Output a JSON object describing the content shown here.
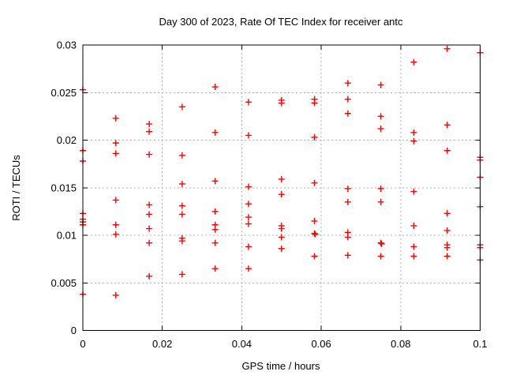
{
  "chart_data": {
    "type": "scatter",
    "title": "Day 300 of 2023, Rate Of TEC Index for receiver antc",
    "xlabel": "GPS time / hours",
    "ylabel": "ROTI / TECUs",
    "xlim": [
      0,
      0.1
    ],
    "ylim": [
      0,
      0.03
    ],
    "x_ticks": [
      0,
      0.02,
      0.04,
      0.06,
      0.08,
      0.1
    ],
    "x_tick_labels": [
      "0",
      "0.02",
      "0.04",
      "0.06",
      "0.08",
      "0.1"
    ],
    "y_ticks": [
      0,
      0.005,
      0.01,
      0.015,
      0.02,
      0.025,
      0.03
    ],
    "y_tick_labels": [
      "0",
      "0.005",
      "0.01",
      "0.015",
      "0.02",
      "0.025",
      "0.03"
    ],
    "grid": true,
    "legend": false,
    "marker": "plus",
    "marker_color": "#ff0000",
    "background_color": "#ffffff",
    "points": [
      [
        0,
        0.0253
      ],
      [
        0,
        0.0189
      ],
      [
        0,
        0.0178
      ],
      [
        0,
        0.0123
      ],
      [
        0,
        0.0117
      ],
      [
        0,
        0.0114
      ],
      [
        0,
        0.0111
      ],
      [
        0,
        0.0038
      ],
      [
        0.0083,
        0.0223
      ],
      [
        0.0083,
        0.0197
      ],
      [
        0.0083,
        0.0186
      ],
      [
        0.0083,
        0.0137
      ],
      [
        0.0083,
        0.0111
      ],
      [
        0.0083,
        0.0101
      ],
      [
        0.0083,
        0.0037
      ],
      [
        0.0167,
        0.0217
      ],
      [
        0.0167,
        0.0209
      ],
      [
        0.0167,
        0.0185
      ],
      [
        0.0167,
        0.0132
      ],
      [
        0.0167,
        0.0122
      ],
      [
        0.0167,
        0.0107
      ],
      [
        0.0167,
        0.0092
      ],
      [
        0.0167,
        0.0057
      ],
      [
        0.025,
        0.0235
      ],
      [
        0.025,
        0.0184
      ],
      [
        0.025,
        0.0154
      ],
      [
        0.025,
        0.0131
      ],
      [
        0.025,
        0.0122
      ],
      [
        0.025,
        0.0097
      ],
      [
        0.025,
        0.0094
      ],
      [
        0.025,
        0.0059
      ],
      [
        0.0333,
        0.0256
      ],
      [
        0.0333,
        0.0208
      ],
      [
        0.0333,
        0.0157
      ],
      [
        0.0333,
        0.0125
      ],
      [
        0.0333,
        0.0111
      ],
      [
        0.0333,
        0.0106
      ],
      [
        0.0333,
        0.0092
      ],
      [
        0.0333,
        0.0065
      ],
      [
        0.0417,
        0.024
      ],
      [
        0.0417,
        0.0205
      ],
      [
        0.0417,
        0.0151
      ],
      [
        0.0417,
        0.0133
      ],
      [
        0.0417,
        0.0119
      ],
      [
        0.0417,
        0.0112
      ],
      [
        0.0417,
        0.0088
      ],
      [
        0.0417,
        0.0065
      ],
      [
        0.05,
        0.0242
      ],
      [
        0.05,
        0.0239
      ],
      [
        0.05,
        0.0159
      ],
      [
        0.05,
        0.0143
      ],
      [
        0.05,
        0.011
      ],
      [
        0.05,
        0.0107
      ],
      [
        0.05,
        0.0098
      ],
      [
        0.05,
        0.0086
      ],
      [
        0.0583,
        0.0243
      ],
      [
        0.0583,
        0.0239
      ],
      [
        0.0583,
        0.0203
      ],
      [
        0.0583,
        0.0155
      ],
      [
        0.0583,
        0.0115
      ],
      [
        0.0583,
        0.0102
      ],
      [
        0.0585,
        0.0101
      ],
      [
        0.0583,
        0.0078
      ],
      [
        0.0667,
        0.026
      ],
      [
        0.0667,
        0.0243
      ],
      [
        0.0667,
        0.0228
      ],
      [
        0.0667,
        0.0149
      ],
      [
        0.0667,
        0.0135
      ],
      [
        0.0667,
        0.0103
      ],
      [
        0.0667,
        0.0098
      ],
      [
        0.0667,
        0.0079
      ],
      [
        0.075,
        0.0258
      ],
      [
        0.075,
        0.0225
      ],
      [
        0.075,
        0.0212
      ],
      [
        0.075,
        0.0149
      ],
      [
        0.075,
        0.0135
      ],
      [
        0.075,
        0.0092
      ],
      [
        0.0752,
        0.0091
      ],
      [
        0.075,
        0.0078
      ],
      [
        0.0833,
        0.0282
      ],
      [
        0.0833,
        0.0208
      ],
      [
        0.0833,
        0.0199
      ],
      [
        0.0833,
        0.0146
      ],
      [
        0.0833,
        0.011
      ],
      [
        0.0833,
        0.0088
      ],
      [
        0.0833,
        0.0078
      ],
      [
        0.0917,
        0.0296
      ],
      [
        0.0917,
        0.0216
      ],
      [
        0.0917,
        0.0189
      ],
      [
        0.0917,
        0.0123
      ],
      [
        0.0917,
        0.0105
      ],
      [
        0.0917,
        0.009
      ],
      [
        0.0917,
        0.0087
      ],
      [
        0.0917,
        0.0078
      ],
      [
        0.1,
        0.0292
      ],
      [
        0.1,
        0.0182
      ],
      [
        0.1,
        0.0179
      ],
      [
        0.1,
        0.0161
      ],
      [
        0.1,
        0.013
      ],
      [
        0.1,
        0.009
      ],
      [
        0.1,
        0.0087
      ],
      [
        0.1,
        0.0074
      ]
    ]
  }
}
